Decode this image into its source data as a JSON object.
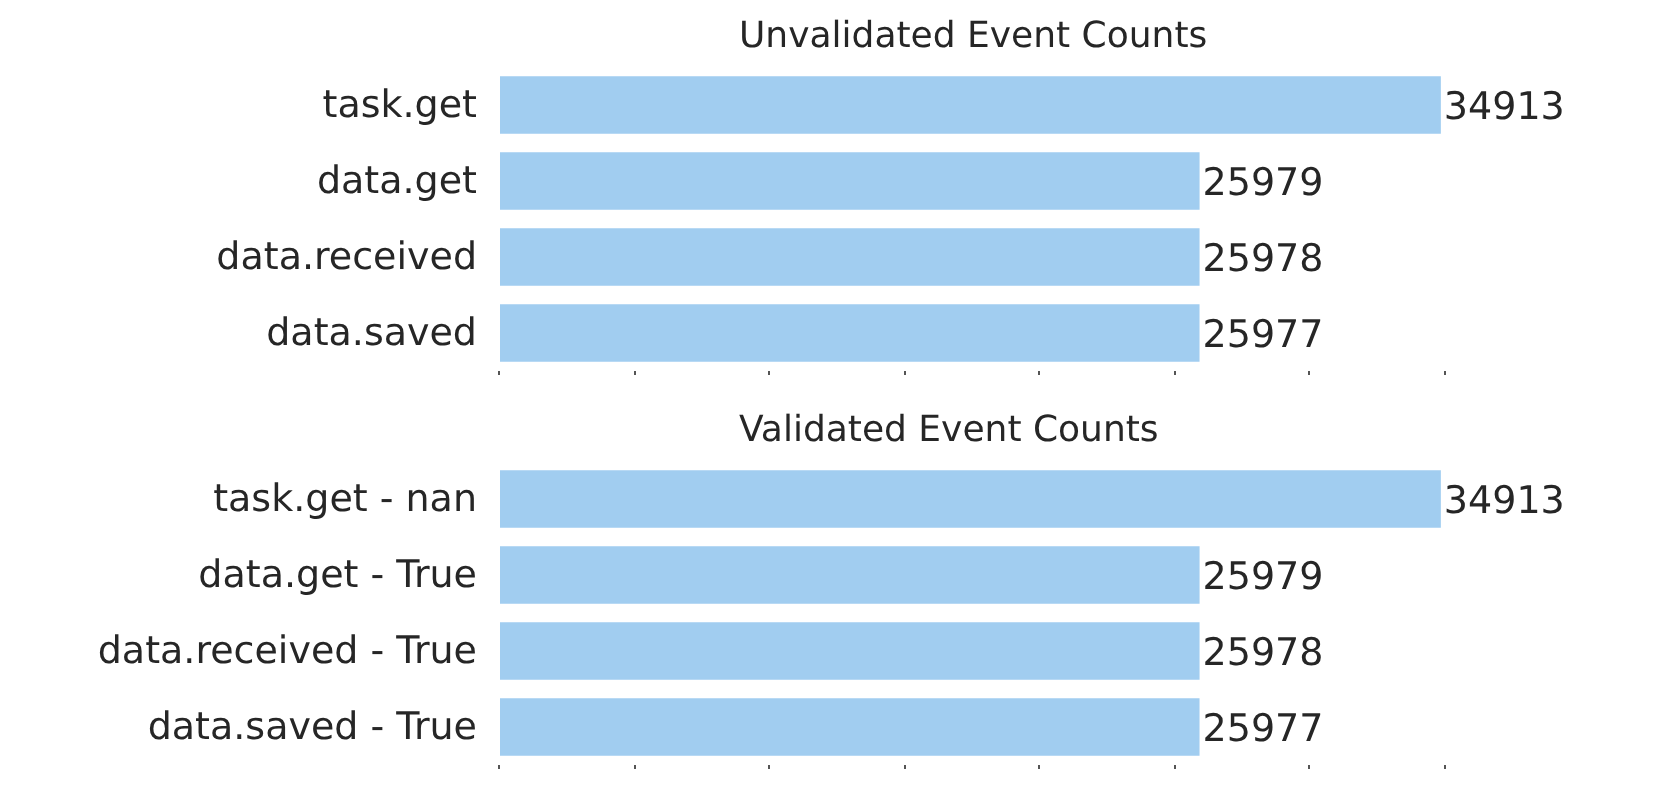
{
  "chart_data": [
    {
      "type": "bar",
      "orientation": "horizontal",
      "title": "Unvalidated Event Counts",
      "categories": [
        "task.get",
        "data.get",
        "data.received",
        "data.saved"
      ],
      "values": [
        34913,
        25979,
        25978,
        25977
      ],
      "color": "#a1cdf0",
      "data_labels": true,
      "xticks": [
        {
          "value": 0,
          "label": null
        },
        {
          "value": 5000,
          "label": null
        },
        {
          "value": 10000,
          "label": null
        },
        {
          "value": 15000,
          "label": null
        },
        {
          "value": 20000,
          "label": null
        },
        {
          "value": 25000,
          "label": null
        },
        {
          "value": 30000,
          "label": null
        },
        {
          "value": 35000,
          "label": null
        }
      ],
      "tick_labels": "y",
      "grid": false
    },
    {
      "type": "bar",
      "orientation": "horizontal",
      "title": "Validated Event Counts",
      "categories": [
        "task.get - nan",
        "data.get - True",
        "data.received - True",
        "data.saved - True"
      ],
      "values": [
        34913,
        25979,
        25978,
        25977
      ],
      "color": "#a1cdf0",
      "data_labels": true,
      "xticks": [
        {
          "value": 0,
          "label": null
        },
        {
          "value": 5000,
          "label": null
        },
        {
          "value": 10000,
          "label": null
        },
        {
          "value": 15000,
          "label": null
        },
        {
          "value": 20000,
          "label": null
        },
        {
          "value": 25000,
          "label": null
        },
        {
          "value": 30000,
          "label": null
        },
        {
          "value": 35000,
          "label": null
        }
      ],
      "tick_labels": "y",
      "grid": false
    }
  ]
}
